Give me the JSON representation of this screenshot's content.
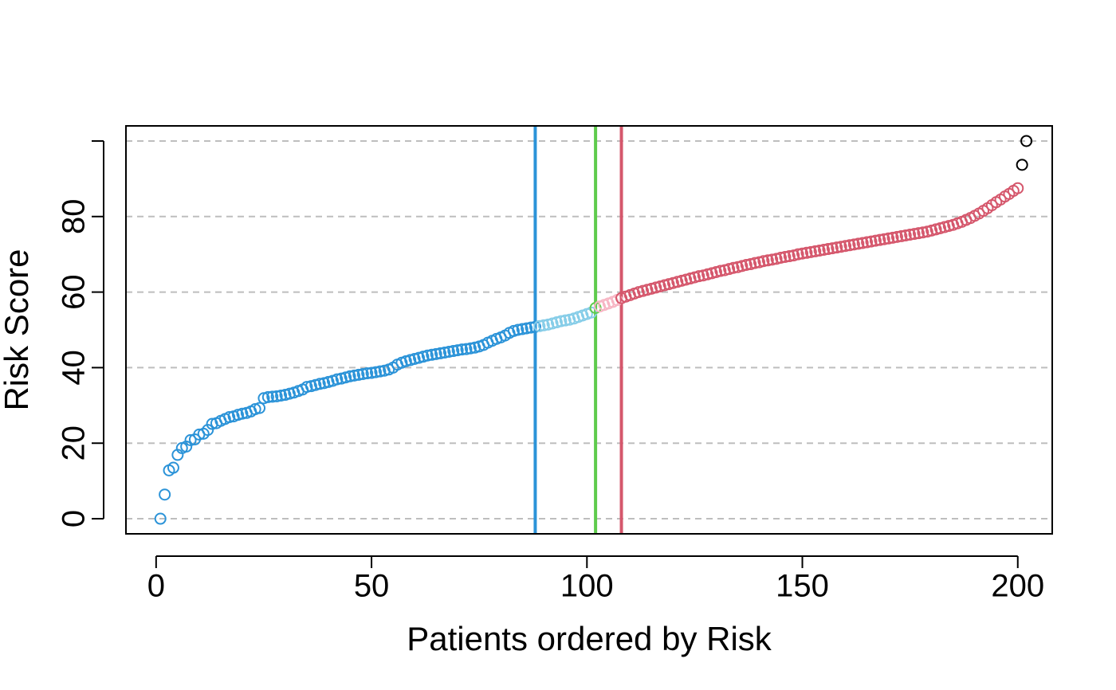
{
  "chart_data": {
    "type": "scatter",
    "title": "",
    "xlabel": "Patients ordered by Risk",
    "ylabel": "Risk Score",
    "xlim": [
      -7,
      208
    ],
    "ylim": [
      -4,
      104
    ],
    "x_ticks": [
      0,
      50,
      100,
      150,
      200
    ],
    "y_ticks": [
      0,
      20,
      40,
      60,
      80
    ],
    "gridlines_y": [
      0,
      20,
      40,
      60,
      80,
      100
    ],
    "grid": "horizontal dashed",
    "legend": "none",
    "vlines": [
      {
        "x": 88,
        "color": "#2B93D8"
      },
      {
        "x": 102,
        "color": "#5ECB4C"
      },
      {
        "x": 108,
        "color": "#D5576C"
      }
    ],
    "groups": [
      {
        "range": [
          1,
          88
        ],
        "color": "#2B93D8"
      },
      {
        "range": [
          89,
          101
        ],
        "color": "#86CDE8"
      },
      {
        "range": [
          102,
          102
        ],
        "color": "#5ECB4C"
      },
      {
        "range": [
          103,
          107
        ],
        "color": "#F7B6C4"
      },
      {
        "range": [
          108,
          200
        ],
        "color": "#D5576C"
      }
    ],
    "x_range": [
      1,
      200
    ],
    "y": [
      0,
      6.4,
      12.8,
      13.5,
      16.9,
      18.7,
      19.1,
      20.8,
      21.0,
      22.3,
      22.5,
      23.5,
      25.1,
      25.3,
      25.9,
      26.4,
      26.9,
      27.1,
      27.5,
      27.8,
      28.0,
      28.4,
      29.0,
      29.3,
      31.9,
      32.2,
      32.3,
      32.4,
      32.6,
      32.8,
      33.1,
      33.4,
      33.8,
      34.2,
      34.9,
      35.1,
      35.4,
      35.7,
      35.9,
      36.2,
      36.5,
      36.9,
      37.1,
      37.4,
      37.7,
      37.9,
      38.1,
      38.3,
      38.5,
      38.6,
      38.8,
      39.0,
      39.2,
      39.5,
      40.0,
      40.8,
      41.3,
      41.7,
      42.0,
      42.3,
      42.6,
      42.9,
      43.2,
      43.4,
      43.6,
      43.8,
      44.0,
      44.2,
      44.4,
      44.6,
      44.8,
      44.9,
      45.1,
      45.3,
      45.6,
      46.0,
      46.6,
      47.1,
      47.6,
      48.0,
      48.5,
      49.2,
      49.7,
      50.0,
      50.2,
      50.4,
      50.6,
      50.8,
      51.0,
      51.2,
      51.4,
      51.7,
      52.0,
      52.3,
      52.5,
      52.7,
      53.0,
      53.4,
      53.8,
      54.2,
      54.6,
      55.8,
      56.2,
      56.6,
      57.0,
      57.4,
      57.9,
      58.4,
      58.8,
      59.2,
      59.6,
      60.0,
      60.3,
      60.6,
      60.9,
      61.2,
      61.5,
      61.8,
      62.1,
      62.4,
      62.7,
      63.0,
      63.3,
      63.6,
      63.9,
      64.2,
      64.4,
      64.7,
      65.0,
      65.3,
      65.6,
      65.8,
      66.1,
      66.4,
      66.6,
      66.9,
      67.2,
      67.4,
      67.7,
      67.9,
      68.2,
      68.4,
      68.6,
      68.8,
      69.1,
      69.3,
      69.5,
      69.7,
      70.0,
      70.2,
      70.4,
      70.6,
      70.8,
      71.0,
      71.2,
      71.4,
      71.6,
      71.8,
      72.0,
      72.2,
      72.4,
      72.6,
      72.8,
      73.0,
      73.2,
      73.4,
      73.6,
      73.8,
      74.0,
      74.2,
      74.4,
      74.6,
      74.8,
      75.0,
      75.2,
      75.4,
      75.6,
      75.8,
      76.0,
      76.3,
      76.6,
      76.9,
      77.2,
      77.5,
      77.8,
      78.2,
      78.6,
      79.1,
      79.6,
      80.2,
      80.8,
      81.5,
      82.2,
      83.0,
      83.8,
      84.5,
      85.3,
      86.0,
      86.8,
      87.5,
      93.7,
      100.0
    ]
  }
}
